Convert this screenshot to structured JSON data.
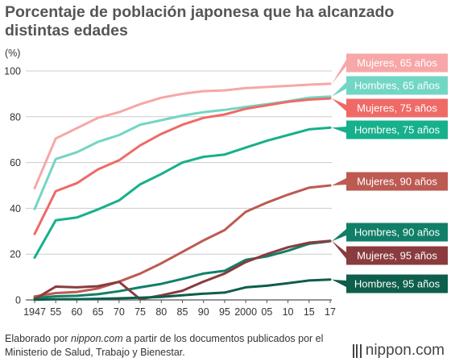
{
  "title_lines": [
    "Porcentaje de población japonesa que ha alcanzado",
    "distintas edades"
  ],
  "footer": {
    "pre": "Elaborado por ",
    "source_name": "nippon.com",
    "post": " a partir de los documentos publicados por el Ministerio de Salud, Trabajo y Bienestar."
  },
  "brand": "nippon.com",
  "chart_data": {
    "type": "line",
    "unit_label": "(%)",
    "x": [
      "1947",
      "55",
      "60",
      "65",
      "70",
      "75",
      "80",
      "85",
      "90",
      "95",
      "2000",
      "05",
      "10",
      "15",
      "17"
    ],
    "ylim": [
      0,
      100
    ],
    "yticks": [
      0,
      20,
      40,
      60,
      80,
      100
    ],
    "grid": true,
    "series": [
      {
        "name": "Mujeres, 65 años",
        "color": "#f7a7a8",
        "values": [
          48.8,
          70.5,
          75,
          79.5,
          82,
          85.5,
          88.3,
          90,
          91.2,
          91.5,
          92.5,
          93,
          93.5,
          94,
          94.4
        ]
      },
      {
        "name": "Hombres, 65 años",
        "color": "#72d6c4",
        "values": [
          39.7,
          61.5,
          64.5,
          69,
          72,
          76.5,
          78.5,
          80.5,
          82,
          83,
          84.3,
          85.5,
          86.8,
          88.3,
          88.8
        ]
      },
      {
        "name": "Mujeres, 75 años",
        "color": "#ef6a67",
        "values": [
          28.8,
          47.5,
          51,
          57,
          61,
          67.5,
          72.5,
          76.5,
          79.5,
          81,
          83.5,
          85,
          86.5,
          87.5,
          88
        ]
      },
      {
        "name": "Hombres, 75 años",
        "color": "#16b08c",
        "values": [
          18.5,
          34.8,
          36,
          39.5,
          43.5,
          50.5,
          55,
          60,
          62.5,
          63.5,
          66.5,
          69.5,
          72,
          74.5,
          75.2
        ]
      },
      {
        "name": "Mujeres, 90 años",
        "color": "#bd5a52",
        "values": [
          1.5,
          3,
          3.5,
          5,
          8,
          11.5,
          16,
          21,
          26,
          30.5,
          38.5,
          42.5,
          46,
          49,
          50
        ]
      },
      {
        "name": "Hombres, 90 años",
        "color": "#117f68",
        "values": [
          0.8,
          1.6,
          1.8,
          2.5,
          3.8,
          5.5,
          7,
          9.2,
          11.5,
          12.7,
          17.5,
          19,
          21.5,
          24.5,
          25.6
        ]
      },
      {
        "name": "Mujeres, 95 años",
        "color": "#8a3b3e",
        "values": [
          0.3,
          5.8,
          5.5,
          6,
          7.9,
          0.3,
          2,
          4,
          8,
          11.5,
          16.5,
          20,
          23,
          25,
          25.8
        ]
      },
      {
        "name": "Hombres, 95 años",
        "color": "#0d5e4b",
        "values": [
          0.1,
          0.3,
          0.3,
          0.5,
          0.7,
          1,
          1.3,
          2,
          2.7,
          3.2,
          5.5,
          6.2,
          7.3,
          8.5,
          8.9
        ]
      }
    ]
  }
}
